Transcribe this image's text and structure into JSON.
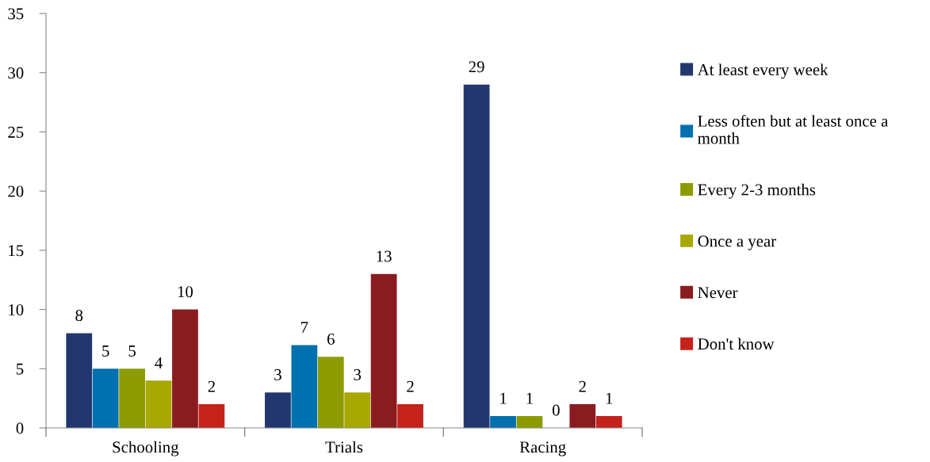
{
  "chart_data": {
    "type": "bar",
    "categories": [
      "Schooling",
      "Trials",
      "Racing"
    ],
    "series": [
      {
        "name": "At least every week",
        "color": "#22376f",
        "values": [
          8,
          3,
          29
        ]
      },
      {
        "name": "Less often but at least once a month",
        "color": "#0070ae",
        "values": [
          5,
          7,
          1
        ]
      },
      {
        "name": "Every 2-3 months",
        "color": "#8c9c00",
        "values": [
          5,
          6,
          1
        ]
      },
      {
        "name": "Once a year",
        "color": "#a9a800",
        "values": [
          4,
          3,
          0
        ]
      },
      {
        "name": "Never",
        "color": "#8a1c20",
        "values": [
          10,
          13,
          2
        ]
      },
      {
        "name": "Don't know",
        "color": "#c5221c",
        "values": [
          2,
          2,
          1
        ]
      }
    ],
    "ylim": [
      0,
      35
    ],
    "yticks": [
      0,
      5,
      10,
      15,
      20,
      25,
      30,
      35
    ],
    "data_labels": true,
    "legend": "right",
    "grid": false
  }
}
